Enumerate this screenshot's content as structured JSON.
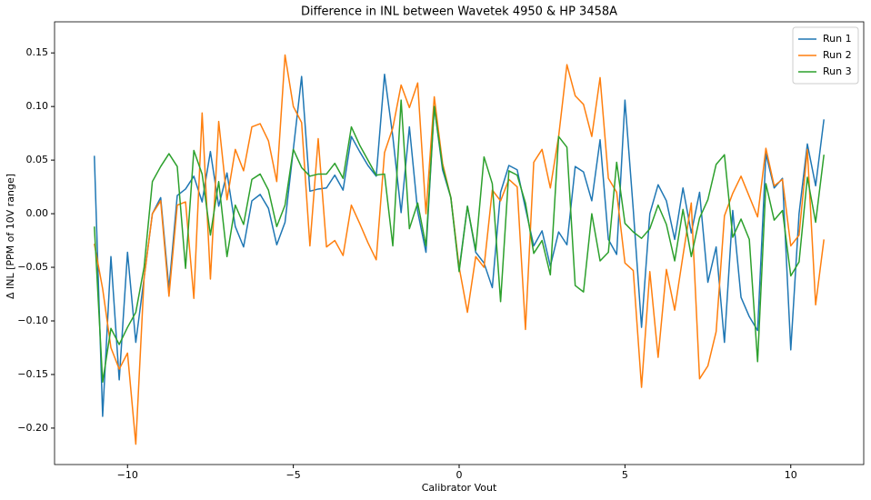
{
  "chart_data": {
    "type": "line",
    "title": "Difference in INL between Wavetek 4950 & HP 3458A",
    "x_label": "Calibrator Vout",
    "y_label": "Δ INL [PPM of 10V range]",
    "x": [
      -11,
      -10.75,
      -10.5,
      -10.25,
      -10,
      -9.75,
      -9.5,
      -9.25,
      -9,
      -8.75,
      -8.5,
      -8.25,
      -8,
      -7.75,
      -7.5,
      -7.25,
      -7,
      -6.75,
      -6.5,
      -6.25,
      -6,
      -5.75,
      -5.5,
      -5.25,
      -5,
      -4.75,
      -4.5,
      -4.25,
      -4,
      -3.75,
      -3.5,
      -3.25,
      -3,
      -2.75,
      -2.5,
      -2.25,
      -2,
      -1.75,
      -1.5,
      -1.25,
      -1,
      -0.75,
      -0.5,
      -0.25,
      0,
      0.25,
      0.5,
      0.75,
      1,
      1.25,
      1.5,
      1.75,
      2,
      2.25,
      2.5,
      2.75,
      3,
      3.25,
      3.5,
      3.75,
      4,
      4.25,
      4.5,
      4.75,
      5,
      5.25,
      5.5,
      5.75,
      6,
      6.25,
      6.5,
      6.75,
      7,
      7.25,
      7.5,
      7.75,
      8,
      8.25,
      8.5,
      8.75,
      9,
      9.25,
      9.5,
      9.75,
      10,
      10.25,
      10.5,
      10.75,
      11
    ],
    "series": [
      {
        "name": "Run 1",
        "color": "#1f77b4",
        "values": [
          0.054,
          -0.189,
          -0.04,
          -0.155,
          -0.036,
          -0.12,
          -0.06,
          0.0,
          0.015,
          -0.07,
          0.017,
          0.023,
          0.035,
          0.011,
          0.058,
          0.007,
          0.038,
          -0.012,
          -0.031,
          0.012,
          0.018,
          0.005,
          -0.029,
          -0.008,
          0.06,
          0.128,
          0.021,
          0.023,
          0.024,
          0.036,
          0.022,
          0.072,
          0.058,
          0.045,
          0.035,
          0.13,
          0.072,
          0.001,
          0.081,
          0.002,
          -0.036,
          0.1,
          0.041,
          0.015,
          -0.052,
          0.007,
          -0.036,
          -0.046,
          -0.069,
          0.02,
          0.045,
          0.041,
          0.005,
          -0.03,
          -0.016,
          -0.049,
          -0.017,
          -0.029,
          0.044,
          0.039,
          0.012,
          0.069,
          -0.024,
          -0.038,
          0.106,
          0.004,
          -0.106,
          0.0,
          0.027,
          0.012,
          -0.024,
          0.024,
          -0.018,
          0.02,
          -0.064,
          -0.031,
          -0.12,
          0.003,
          -0.078,
          -0.096,
          -0.109,
          0.056,
          0.024,
          0.033,
          -0.127,
          0.0,
          0.065,
          0.026,
          0.088
        ]
      },
      {
        "name": "Run 2",
        "color": "#ff7f0e",
        "values": [
          -0.028,
          -0.07,
          -0.125,
          -0.145,
          -0.13,
          -0.215,
          -0.06,
          0.0,
          0.012,
          -0.077,
          0.008,
          0.011,
          -0.079,
          0.094,
          -0.061,
          0.086,
          0.013,
          0.06,
          0.04,
          0.081,
          0.084,
          0.068,
          0.03,
          0.148,
          0.1,
          0.085,
          -0.03,
          0.07,
          -0.031,
          -0.025,
          -0.039,
          0.008,
          -0.009,
          -0.027,
          -0.043,
          0.057,
          0.08,
          0.12,
          0.099,
          0.122,
          0.0,
          0.109,
          0.047,
          0.015,
          -0.05,
          -0.092,
          -0.04,
          -0.05,
          0.022,
          0.012,
          0.032,
          0.025,
          -0.108,
          0.048,
          0.06,
          0.024,
          0.072,
          0.139,
          0.11,
          0.102,
          0.072,
          0.127,
          0.033,
          0.02,
          -0.046,
          -0.053,
          -0.162,
          -0.054,
          -0.134,
          -0.052,
          -0.09,
          -0.039,
          0.01,
          -0.154,
          -0.142,
          -0.11,
          -0.002,
          0.019,
          0.035,
          0.016,
          -0.003,
          0.061,
          0.026,
          0.032,
          -0.03,
          -0.02,
          0.06,
          -0.085,
          -0.024
        ]
      },
      {
        "name": "Run 3",
        "color": "#2ca02c",
        "values": [
          -0.012,
          -0.157,
          -0.107,
          -0.122,
          -0.106,
          -0.092,
          -0.05,
          0.03,
          0.044,
          0.056,
          0.044,
          -0.051,
          0.059,
          0.037,
          -0.02,
          0.03,
          -0.04,
          0.008,
          -0.01,
          0.032,
          0.037,
          0.022,
          -0.012,
          0.008,
          0.06,
          0.043,
          0.035,
          0.037,
          0.037,
          0.047,
          0.033,
          0.081,
          0.064,
          0.05,
          0.036,
          0.037,
          -0.03,
          0.106,
          -0.014,
          0.01,
          -0.03,
          0.1,
          0.044,
          0.015,
          -0.054,
          0.007,
          -0.034,
          0.053,
          0.028,
          -0.082,
          0.04,
          0.036,
          0.01,
          -0.037,
          -0.025,
          -0.057,
          0.072,
          0.062,
          -0.067,
          -0.073,
          0.0,
          -0.044,
          -0.036,
          0.048,
          -0.009,
          -0.017,
          -0.023,
          -0.014,
          0.008,
          -0.01,
          -0.044,
          0.004,
          -0.04,
          -0.004,
          0.013,
          0.046,
          0.055,
          -0.022,
          -0.005,
          -0.024,
          -0.138,
          0.028,
          -0.006,
          0.003,
          -0.058,
          -0.045,
          0.034,
          -0.008,
          0.055
        ]
      }
    ],
    "xlim": [
      -12.2,
      12.2
    ],
    "xticks": [
      {
        "value": -10,
        "label": "−10"
      },
      {
        "value": -5,
        "label": "−5"
      },
      0,
      5,
      10
    ],
    "ylim": [
      -0.234,
      0.179
    ],
    "yticks": [
      {
        "value": -0.2,
        "label": "−0.20"
      },
      {
        "value": -0.15,
        "label": "−0.15"
      },
      {
        "value": -0.1,
        "label": "−0.10"
      },
      {
        "value": -0.05,
        "label": "−0.05"
      },
      {
        "value": 0,
        "label": "0.00"
      },
      0.05,
      {
        "value": 0.1,
        "label": "0.10"
      },
      0.15
    ],
    "grid": false,
    "legend": "upper-right"
  }
}
